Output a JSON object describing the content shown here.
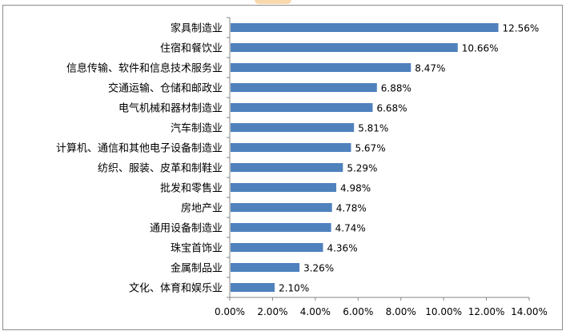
{
  "chart_data": {
    "type": "bar",
    "orientation": "horizontal",
    "title": "",
    "xlabel": "",
    "ylabel": "",
    "categories": [
      "家具制造业",
      "住宿和餐饮业",
      "信息传输、软件和信息技术服务业",
      "交通运输、仓储和邮政业",
      "电气机械和器材制造业",
      "汽车制造业",
      "计算机、通信和其他电子设备制造业",
      "纺织、服装、皮革和制鞋业",
      "批发和零售业",
      "房地产业",
      "通用设备制造业",
      "珠宝首饰业",
      "金属制品业",
      "文化、体育和娱乐业"
    ],
    "values": [
      12.56,
      10.66,
      8.47,
      6.88,
      6.68,
      5.81,
      5.67,
      5.29,
      4.98,
      4.78,
      4.74,
      4.36,
      3.26,
      2.1
    ],
    "value_labels": [
      "12.56%",
      "10.66%",
      "8.47%",
      "6.88%",
      "6.68%",
      "5.81%",
      "5.67%",
      "5.29%",
      "4.98%",
      "4.78%",
      "4.74%",
      "4.36%",
      "3.26%",
      "2.10%"
    ],
    "xlim": [
      0,
      14
    ],
    "x_ticks": [
      0,
      2,
      4,
      6,
      8,
      10,
      12,
      14
    ],
    "x_tick_labels": [
      "0.00%",
      "2.00%",
      "4.00%",
      "6.00%",
      "8.00%",
      "10.00%",
      "12.00%",
      "14.00%"
    ],
    "grid": false,
    "legend": "none",
    "bar_color": "#4f81bd",
    "axis_color": "#868686"
  }
}
